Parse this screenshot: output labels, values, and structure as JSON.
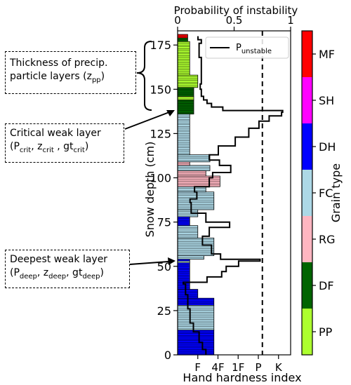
{
  "chart_data": {
    "type": "bar",
    "top_axis_label": "Probability of instability",
    "top_ticks": [
      {
        "v": 0,
        "label": "0"
      },
      {
        "v": 0.5,
        "label": "0.5"
      },
      {
        "v": 1,
        "label": "1"
      }
    ],
    "ylabel": "Snow depth (cm)",
    "ylim": [
      0,
      183
    ],
    "yticks": [
      0,
      25,
      50,
      75,
      100,
      125,
      150,
      175
    ],
    "xlabel": "Hand hardness index",
    "hardness_ticks": [
      {
        "v": 1,
        "label": "F"
      },
      {
        "v": 2,
        "label": "4F"
      },
      {
        "v": 3,
        "label": "1F"
      },
      {
        "v": 4,
        "label": "P"
      },
      {
        "v": 5,
        "label": "K"
      }
    ],
    "hardness_max": 5.6,
    "p_threshold_hardness": 4.2,
    "grain_colors": {
      "PP": "#adff2f",
      "DF": "#006400",
      "RG": "#ffb6c1",
      "FC": "#add8e6",
      "DH": "#0000ff",
      "SH": "#ff00ff",
      "MF": "#ff0000"
    },
    "colorbar": {
      "label": "Grain type",
      "order": [
        "PP",
        "DF",
        "RG",
        "FC",
        "DH",
        "SH",
        "MF"
      ]
    },
    "legend": {
      "label_main": "P",
      "label_sub": "unstable",
      "placement": "top-right"
    },
    "layers": [
      {
        "bottom": 0,
        "top": 14,
        "hardness": 1.8,
        "grain": "DH"
      },
      {
        "bottom": 14,
        "top": 28,
        "hardness": 1.8,
        "grain": "FC"
      },
      {
        "bottom": 28,
        "top": 32,
        "hardness": 1.8,
        "grain": "DH"
      },
      {
        "bottom": 32,
        "top": 37,
        "hardness": 1.0,
        "grain": "DH"
      },
      {
        "bottom": 37,
        "top": 52,
        "hardness": 0.6,
        "grain": "DH"
      },
      {
        "bottom": 52,
        "top": 53,
        "hardness": 0.6,
        "grain": "FC"
      },
      {
        "bottom": 53,
        "top": 54,
        "hardness": 0.6,
        "grain": "DH"
      },
      {
        "bottom": 54,
        "top": 56,
        "hardness": 1.3,
        "grain": "FC"
      },
      {
        "bottom": 56,
        "top": 66,
        "hardness": 1.8,
        "grain": "FC"
      },
      {
        "bottom": 66,
        "top": 73,
        "hardness": 1.0,
        "grain": "FC"
      },
      {
        "bottom": 73,
        "top": 78,
        "hardness": 0.6,
        "grain": "DH"
      },
      {
        "bottom": 78,
        "top": 82,
        "hardness": 1.0,
        "grain": "FC"
      },
      {
        "bottom": 82,
        "top": 92,
        "hardness": 1.8,
        "grain": "FC"
      },
      {
        "bottom": 92,
        "top": 95,
        "hardness": 1.4,
        "grain": "FC"
      },
      {
        "bottom": 95,
        "top": 101,
        "hardness": 2.1,
        "grain": "RG"
      },
      {
        "bottom": 101,
        "top": 104,
        "hardness": 1.4,
        "grain": "RG"
      },
      {
        "bottom": 104,
        "top": 107,
        "hardness": 1.6,
        "grain": "FC"
      },
      {
        "bottom": 107,
        "top": 109,
        "hardness": 0.6,
        "grain": "RG"
      },
      {
        "bottom": 109,
        "top": 113,
        "hardness": 1.6,
        "grain": "FC"
      },
      {
        "bottom": 113,
        "top": 136,
        "hardness": 0.6,
        "grain": "FC"
      },
      {
        "bottom": 136,
        "top": 144,
        "hardness": 0.8,
        "grain": "DF"
      },
      {
        "bottom": 144,
        "top": 146,
        "hardness": 0.8,
        "grain": "PP"
      },
      {
        "bottom": 146,
        "top": 151,
        "hardness": 0.8,
        "grain": "DF"
      },
      {
        "bottom": 151,
        "top": 158,
        "hardness": 1.0,
        "grain": "PP"
      },
      {
        "bottom": 158,
        "top": 177,
        "hardness": 0.6,
        "grain": "PP"
      },
      {
        "bottom": 177,
        "top": 179,
        "hardness": 0.5,
        "grain": "DF"
      },
      {
        "bottom": 179,
        "top": 181,
        "hardness": 0.5,
        "grain": "MF"
      }
    ],
    "p_unstable": [
      {
        "depth": 0,
        "p": 0.25
      },
      {
        "depth": 3,
        "p": 0.25
      },
      {
        "depth": 3,
        "p": 0.22
      },
      {
        "depth": 7,
        "p": 0.22
      },
      {
        "depth": 7,
        "p": 0.19
      },
      {
        "depth": 13,
        "p": 0.19
      },
      {
        "depth": 13,
        "p": 0.14
      },
      {
        "depth": 18,
        "p": 0.14
      },
      {
        "depth": 18,
        "p": 0.11
      },
      {
        "depth": 26,
        "p": 0.11
      },
      {
        "depth": 26,
        "p": 0.09
      },
      {
        "depth": 34,
        "p": 0.09
      },
      {
        "depth": 34,
        "p": 0.07
      },
      {
        "depth": 40,
        "p": 0.07
      },
      {
        "depth": 40,
        "p": 0.05
      },
      {
        "depth": 41,
        "p": 0.05
      },
      {
        "depth": 41,
        "p": 0.26
      },
      {
        "depth": 44,
        "p": 0.26
      },
      {
        "depth": 44,
        "p": 0.39
      },
      {
        "depth": 47,
        "p": 0.39
      },
      {
        "depth": 47,
        "p": 0.43
      },
      {
        "depth": 50,
        "p": 0.43
      },
      {
        "depth": 50,
        "p": 0.54
      },
      {
        "depth": 53,
        "p": 0.54
      },
      {
        "depth": 53,
        "p": 0.73
      },
      {
        "depth": 54,
        "p": 0.73
      },
      {
        "depth": 54,
        "p": 0.38
      },
      {
        "depth": 57,
        "p": 0.38
      },
      {
        "depth": 57,
        "p": 0.3
      },
      {
        "depth": 62,
        "p": 0.3
      },
      {
        "depth": 62,
        "p": 0.22
      },
      {
        "depth": 67,
        "p": 0.22
      },
      {
        "depth": 67,
        "p": 0.28
      },
      {
        "depth": 72,
        "p": 0.28
      },
      {
        "depth": 72,
        "p": 0.46
      },
      {
        "depth": 75,
        "p": 0.46
      },
      {
        "depth": 75,
        "p": 0.25
      },
      {
        "depth": 80,
        "p": 0.25
      },
      {
        "depth": 80,
        "p": 0.12
      },
      {
        "depth": 86,
        "p": 0.12
      },
      {
        "depth": 86,
        "p": 0.11
      },
      {
        "depth": 88,
        "p": 0.11
      },
      {
        "depth": 88,
        "p": 0.17
      },
      {
        "depth": 92,
        "p": 0.17
      },
      {
        "depth": 92,
        "p": 0.15
      },
      {
        "depth": 95,
        "p": 0.15
      },
      {
        "depth": 95,
        "p": 0.28
      },
      {
        "depth": 100,
        "p": 0.28
      },
      {
        "depth": 100,
        "p": 0.31
      },
      {
        "depth": 103,
        "p": 0.31
      },
      {
        "depth": 103,
        "p": 0.47
      },
      {
        "depth": 107,
        "p": 0.47
      },
      {
        "depth": 107,
        "p": 0.37
      },
      {
        "depth": 110,
        "p": 0.37
      },
      {
        "depth": 110,
        "p": 0.28
      },
      {
        "depth": 113,
        "p": 0.28
      },
      {
        "depth": 113,
        "p": 0.36
      },
      {
        "depth": 118,
        "p": 0.36
      },
      {
        "depth": 118,
        "p": 0.51
      },
      {
        "depth": 123,
        "p": 0.51
      },
      {
        "depth": 123,
        "p": 0.63
      },
      {
        "depth": 128,
        "p": 0.63
      },
      {
        "depth": 128,
        "p": 0.72
      },
      {
        "depth": 132,
        "p": 0.72
      },
      {
        "depth": 132,
        "p": 0.81
      },
      {
        "depth": 135,
        "p": 0.81
      },
      {
        "depth": 135,
        "p": 0.92
      },
      {
        "depth": 137,
        "p": 0.92
      },
      {
        "depth": 137,
        "p": 0.93
      },
      {
        "depth": 138,
        "p": 0.93
      },
      {
        "depth": 138,
        "p": 0.4
      },
      {
        "depth": 140,
        "p": 0.4
      },
      {
        "depth": 140,
        "p": 0.3
      },
      {
        "depth": 142,
        "p": 0.3
      },
      {
        "depth": 142,
        "p": 0.26
      },
      {
        "depth": 144,
        "p": 0.26
      },
      {
        "depth": 144,
        "p": 0.23
      },
      {
        "depth": 146,
        "p": 0.23
      },
      {
        "depth": 146,
        "p": 0.21
      },
      {
        "depth": 150,
        "p": 0.21
      },
      {
        "depth": 150,
        "p": 0.2
      },
      {
        "depth": 153,
        "p": 0.2
      },
      {
        "depth": 153,
        "p": 0.21
      },
      {
        "depth": 168,
        "p": 0.21
      },
      {
        "depth": 168,
        "p": 0.19
      },
      {
        "depth": 176,
        "p": 0.19
      },
      {
        "depth": 176,
        "p": 0.21
      },
      {
        "depth": 178,
        "p": 0.21
      },
      {
        "depth": 178,
        "p": 0.18
      },
      {
        "depth": 180,
        "p": 0.18
      }
    ]
  },
  "annotations": [
    {
      "id": "thickness",
      "lines": [
        [
          {
            "t": "Thickness of precip."
          }
        ],
        [
          {
            "t": "particle layers (z"
          },
          {
            "t": "pp",
            "sub": true
          },
          {
            "t": ")"
          }
        ]
      ]
    },
    {
      "id": "critical",
      "lines": [
        [
          {
            "t": "Critical weak layer"
          }
        ],
        [
          {
            "t": "(P"
          },
          {
            "t": "crit",
            "sub": true
          },
          {
            "t": ", z"
          },
          {
            "t": "crit",
            "sub": true
          },
          {
            "t": " , gt"
          },
          {
            "t": "crit",
            "sub": true
          },
          {
            "t": ")"
          }
        ]
      ]
    },
    {
      "id": "deepest",
      "lines": [
        [
          {
            "t": "Deepest weak layer"
          }
        ],
        [
          {
            "t": "(P"
          },
          {
            "t": "deep",
            "sub": true
          },
          {
            "t": ", z"
          },
          {
            "t": "deep",
            "sub": true
          },
          {
            "t": ", gt"
          },
          {
            "t": "deep",
            "sub": true
          },
          {
            "t": ")"
          }
        ]
      ]
    }
  ]
}
